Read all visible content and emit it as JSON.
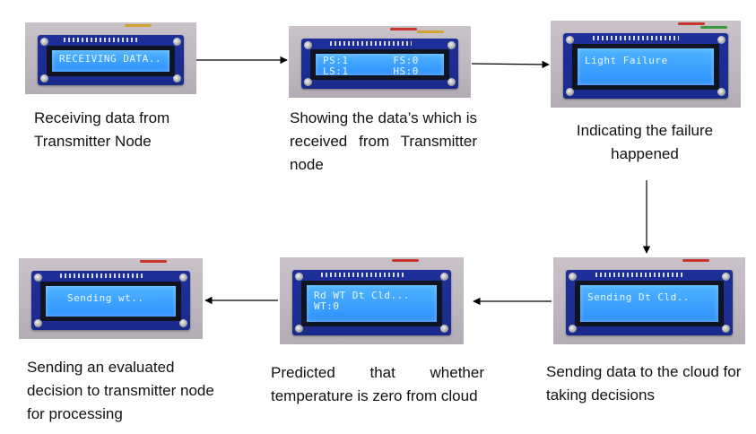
{
  "panels": [
    {
      "lcd_lines": [
        "RECEIVING DATA.."
      ],
      "caption": "Receiving data from Transmitter  Node"
    },
    {
      "lcd_lines": [
        "PS:1       FS:0",
        "LS:1       HS:0"
      ],
      "caption": "Showing the data’s which is received from Transmitter node"
    },
    {
      "lcd_lines": [
        "Light Failure"
      ],
      "caption": "Indicating the failure happened"
    },
    {
      "lcd_lines": [
        "Sending Dt Cld.."
      ],
      "caption": "Sending data to the cloud for taking decisions"
    },
    {
      "lcd_lines": [
        "Rd WT Dt Cld...",
        "WT:0"
      ],
      "caption": "Predicted that whether temperature is zero from cloud"
    },
    {
      "lcd_lines": [
        "Sending wt.."
      ],
      "caption": "Sending an evaluated decision to transmitter node for processing"
    }
  ],
  "colors": {
    "lcd": "#3aa0ff",
    "board": "#1f2f9a",
    "arrow": "#000000"
  }
}
